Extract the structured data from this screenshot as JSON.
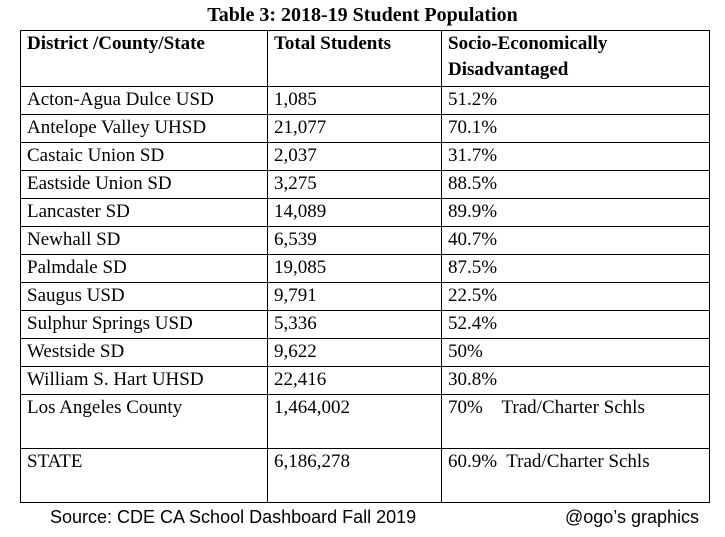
{
  "title": "Table 3: 2018-19 Student Population",
  "table": {
    "header": [
      "District /County/State",
      "Total Students",
      "Socio-Economically Disadvantaged"
    ],
    "rows": [
      [
        "Acton-Agua Dulce USD",
        "1,085",
        "51.2%"
      ],
      [
        "Antelope Valley UHSD",
        "21,077",
        "70.1%"
      ],
      [
        "Castaic Union SD",
        "2,037",
        "31.7%"
      ],
      [
        "Eastside Union SD",
        "3,275",
        "88.5%"
      ],
      [
        "Lancaster SD",
        "14,089",
        "89.9%"
      ],
      [
        "Newhall SD",
        "6,539",
        "40.7%"
      ],
      [
        "Palmdale SD",
        "19,085",
        "87.5%"
      ],
      [
        "Saugus USD",
        "9,791",
        "22.5%"
      ],
      [
        "Sulphur Springs USD",
        "5,336",
        "52.4%"
      ],
      [
        "Westside SD",
        "9,622",
        "50%"
      ],
      [
        "William S. Hart UHSD",
        "22,416",
        "30.8%"
      ],
      [
        "Los Angeles County",
        "1,464,002",
        "70%    Trad/Charter Schls"
      ],
      [
        "STATE",
        "6,186,278",
        "60.9%  Trad/Charter Schls"
      ]
    ]
  },
  "footer": {
    "source": "Source: CDE CA School Dashboard Fall 2019",
    "credit": "@ogo’s graphics"
  }
}
